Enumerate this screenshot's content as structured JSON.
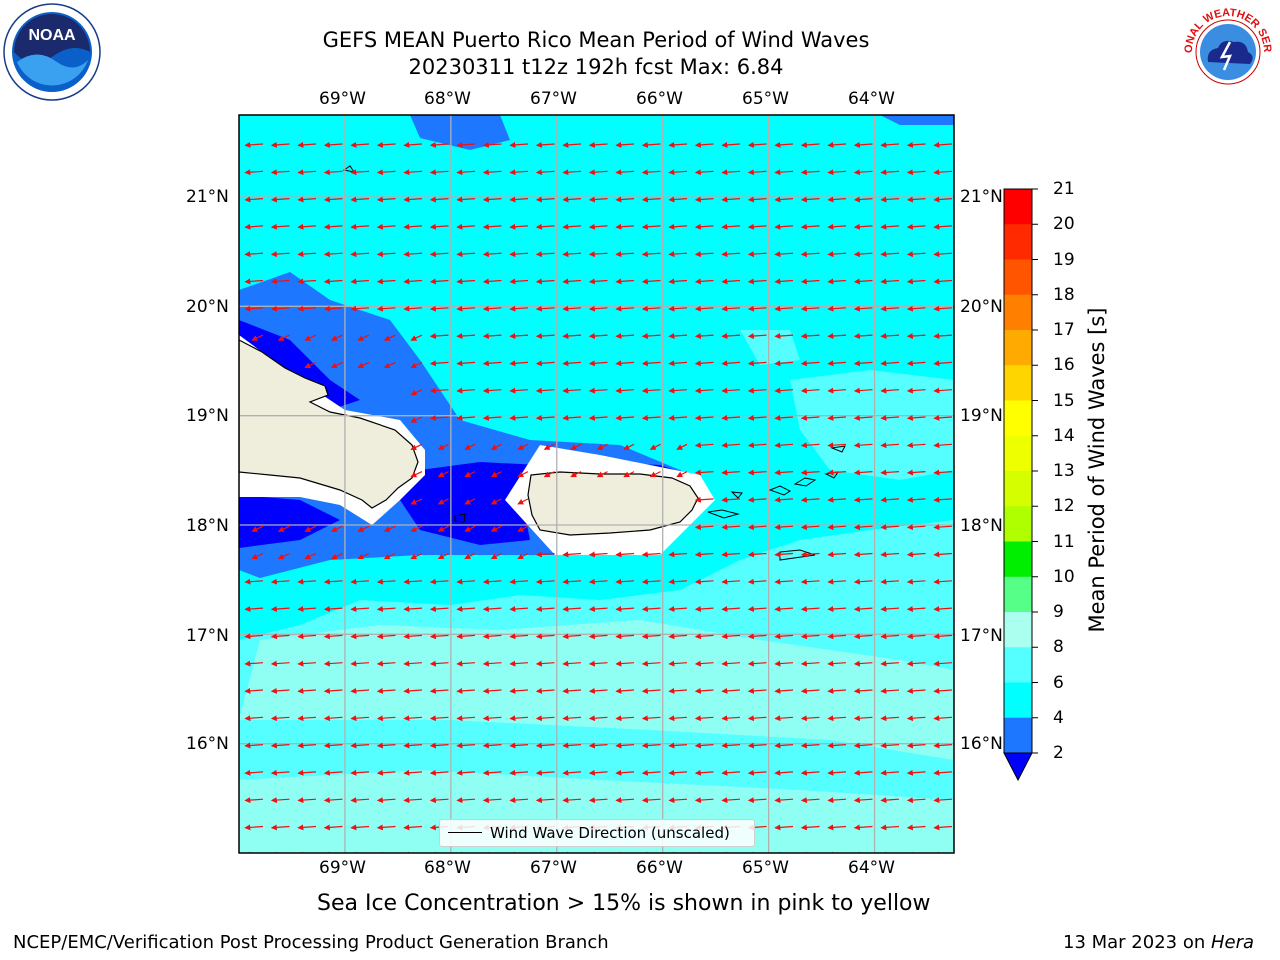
{
  "header": {
    "title_line1": "GEFS MEAN Puerto Rico Mean Period of Wind Waves",
    "title_line2": "20230311 t12z 192h fcst   Max: 6.84"
  },
  "logos": {
    "noaa": "NOAA",
    "nws": "NATIONAL WEATHER SERVICE"
  },
  "map": {
    "lon_labels": [
      "69°W",
      "68°W",
      "67°W",
      "66°W",
      "65°W",
      "64°W"
    ],
    "lat_labels": [
      "21°N",
      "20°N",
      "19°N",
      "18°N",
      "17°N",
      "16°N"
    ],
    "lon_range": [
      -70.0,
      -63.25
    ],
    "lat_range": [
      15.0,
      21.75
    ],
    "legend_label": "Wind Wave Direction (unscaled)"
  },
  "colorbar": {
    "label": "Mean Period of Wind Waves [s]",
    "ticks": [
      "21",
      "20",
      "19",
      "18",
      "17",
      "16",
      "15",
      "14",
      "13",
      "12",
      "11",
      "10",
      "9",
      "8",
      "6",
      "4",
      "2"
    ],
    "colors": [
      "#ff0000",
      "#ff2a00",
      "#ff5500",
      "#ff8000",
      "#ffaa00",
      "#ffd500",
      "#ffff00",
      "#eeff00",
      "#d5ff00",
      "#b0ff00",
      "#70e620",
      "#00ee00",
      "#00ff33",
      "#55ff88",
      "#aaffee",
      "#55ffff",
      "#00ffff",
      "#1e78ff",
      "#0000ff"
    ]
  },
  "footer": {
    "note": "Sea Ice Concentration > 15% is shown in pink to yellow",
    "left": "NCEP/EMC/Verification Post Processing Product Generation Branch",
    "right_date": "13 Mar 2023 on ",
    "right_host": "Hera"
  }
}
